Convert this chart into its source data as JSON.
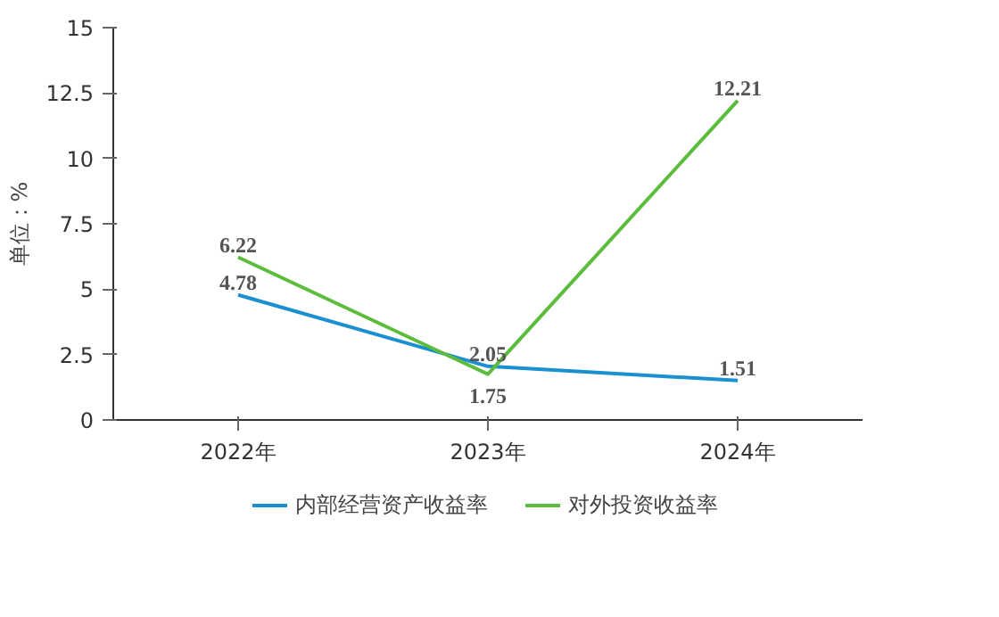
{
  "chart_data": {
    "type": "line",
    "ylabel": "单位：%",
    "categories": [
      "2022年",
      "2023年",
      "2024年"
    ],
    "series": [
      {
        "name": "内部经营资产收益率",
        "color": "#1a90d0",
        "values": [
          4.78,
          2.05,
          1.51
        ]
      },
      {
        "name": "对外投资收益率",
        "color": "#5cbd3c",
        "values": [
          6.22,
          1.75,
          12.21
        ]
      }
    ],
    "ylim": [
      0,
      15
    ],
    "yticks": [
      0,
      2.5,
      5,
      7.5,
      10,
      12.5,
      15
    ],
    "grid": false,
    "legend": "bottom",
    "data_labels": true,
    "marker": "none",
    "line_style": "solid"
  }
}
